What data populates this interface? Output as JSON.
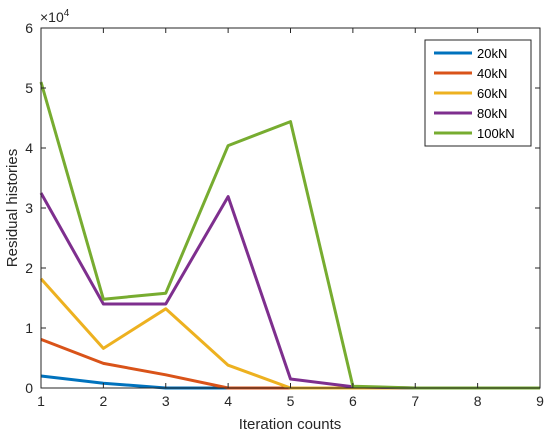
{
  "chart_data": {
    "type": "line",
    "xlabel": "Iteration counts",
    "ylabel": "Residual histories",
    "y_multiplier_label": "×10",
    "y_multiplier_exponent": "4",
    "xlim": [
      1,
      9
    ],
    "ylim": [
      0,
      60000
    ],
    "x_ticks": [
      "1",
      "2",
      "3",
      "4",
      "5",
      "6",
      "7",
      "8",
      "9"
    ],
    "y_ticks": [
      "0",
      "1",
      "2",
      "3",
      "4",
      "5",
      "6"
    ],
    "y_tick_values": [
      0,
      10000,
      20000,
      30000,
      40000,
      50000,
      60000
    ],
    "grid": false,
    "legend_position": "top-right",
    "x": [
      1,
      2,
      3,
      4,
      5,
      6,
      7,
      8,
      9
    ],
    "series": [
      {
        "name": "20kN",
        "color": "#0072BD",
        "values": [
          2000,
          800,
          0,
          0,
          0,
          0,
          0,
          0,
          0
        ]
      },
      {
        "name": "40kN",
        "color": "#D95319",
        "values": [
          8100,
          4100,
          2200,
          0,
          0,
          0,
          0,
          0,
          0
        ]
      },
      {
        "name": "60kN",
        "color": "#EDB120",
        "values": [
          18200,
          6600,
          13200,
          3800,
          0,
          0,
          0,
          0,
          0
        ]
      },
      {
        "name": "80kN",
        "color": "#7E2F8E",
        "values": [
          32500,
          14000,
          14000,
          31900,
          1500,
          200,
          0,
          0,
          0
        ]
      },
      {
        "name": "100kN",
        "color": "#77AC30",
        "values": [
          51000,
          14800,
          15800,
          40400,
          44400,
          300,
          0,
          0,
          0
        ]
      }
    ]
  }
}
